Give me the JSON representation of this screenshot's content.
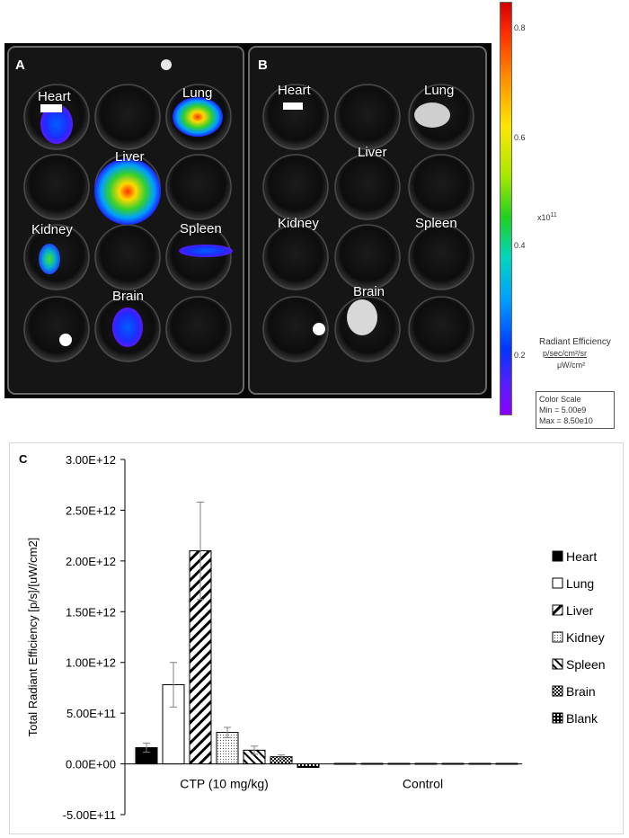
{
  "panel_a_label": "A",
  "panel_b_label": "B",
  "panel_c_label": "C",
  "plate_a_organs": [
    "Heart",
    "Lung",
    "Liver",
    "Kidney",
    "Spleen",
    "Brain"
  ],
  "plate_b_organs": [
    "Heart",
    "Lung",
    "Liver",
    "Kidney",
    "Spleen",
    "Brain"
  ],
  "colorbar": {
    "ticks": [
      "0.8",
      "0.6",
      "0.4",
      "0.2"
    ],
    "multiplier": "x10",
    "multiplier_exp": "11",
    "title": "Radiant Efficiency",
    "unit_num": "p/sec/cm²/sr",
    "unit_den": "μW/cm²",
    "scale_title": "Color Scale",
    "scale_min": "Min = 5.00e9",
    "scale_max": "Max = 8.50e10"
  },
  "colors": {
    "bar_stroke": "#000000",
    "heart": "#000000",
    "axis": "#000000",
    "error": "#808080"
  },
  "chart_data": {
    "type": "bar",
    "ylabel": "Total Radiant Efficiency [p/s]/[uW/cm2]",
    "xlabel": "",
    "ylim": [
      -500000000000.0,
      3000000000000.0
    ],
    "yticks": [
      "-5.00E+11",
      "0.00E+00",
      "5.00E+11",
      "1.00E+12",
      "1.50E+12",
      "2.00E+12",
      "2.50E+12",
      "3.00E+12"
    ],
    "ytick_values": [
      -500000000000.0,
      0,
      500000000000.0,
      1000000000000.0,
      1500000000000.0,
      2000000000000.0,
      2500000000000.0,
      3000000000000.0
    ],
    "categories": [
      "CTP (10 mg/kg)",
      "Control"
    ],
    "legend_position": "right",
    "series": [
      {
        "name": "Heart",
        "values": [
          160000000000.0,
          5000000000.0
        ],
        "errors": [
          45000000000.0,
          0
        ],
        "pattern": "solid"
      },
      {
        "name": "Lung",
        "values": [
          780000000000.0,
          5000000000.0
        ],
        "errors": [
          220000000000.0,
          0
        ],
        "pattern": "white"
      },
      {
        "name": "Liver",
        "values": [
          2100000000000.0,
          5000000000.0
        ],
        "errors": [
          480000000000.0,
          0
        ],
        "pattern": "diag-wide"
      },
      {
        "name": "Kidney",
        "values": [
          310000000000.0,
          5000000000.0
        ],
        "errors": [
          50000000000.0,
          0
        ],
        "pattern": "dots"
      },
      {
        "name": "Spleen",
        "values": [
          135000000000.0,
          5000000000.0
        ],
        "errors": [
          40000000000.0,
          0
        ],
        "pattern": "diag-back"
      },
      {
        "name": "Brain",
        "values": [
          70000000000.0,
          5000000000.0
        ],
        "errors": [
          18000000000.0,
          0
        ],
        "pattern": "checker"
      },
      {
        "name": "Blank",
        "values": [
          -35000000000.0,
          5000000000.0
        ],
        "errors": [
          0,
          0
        ],
        "pattern": "grid"
      }
    ]
  }
}
